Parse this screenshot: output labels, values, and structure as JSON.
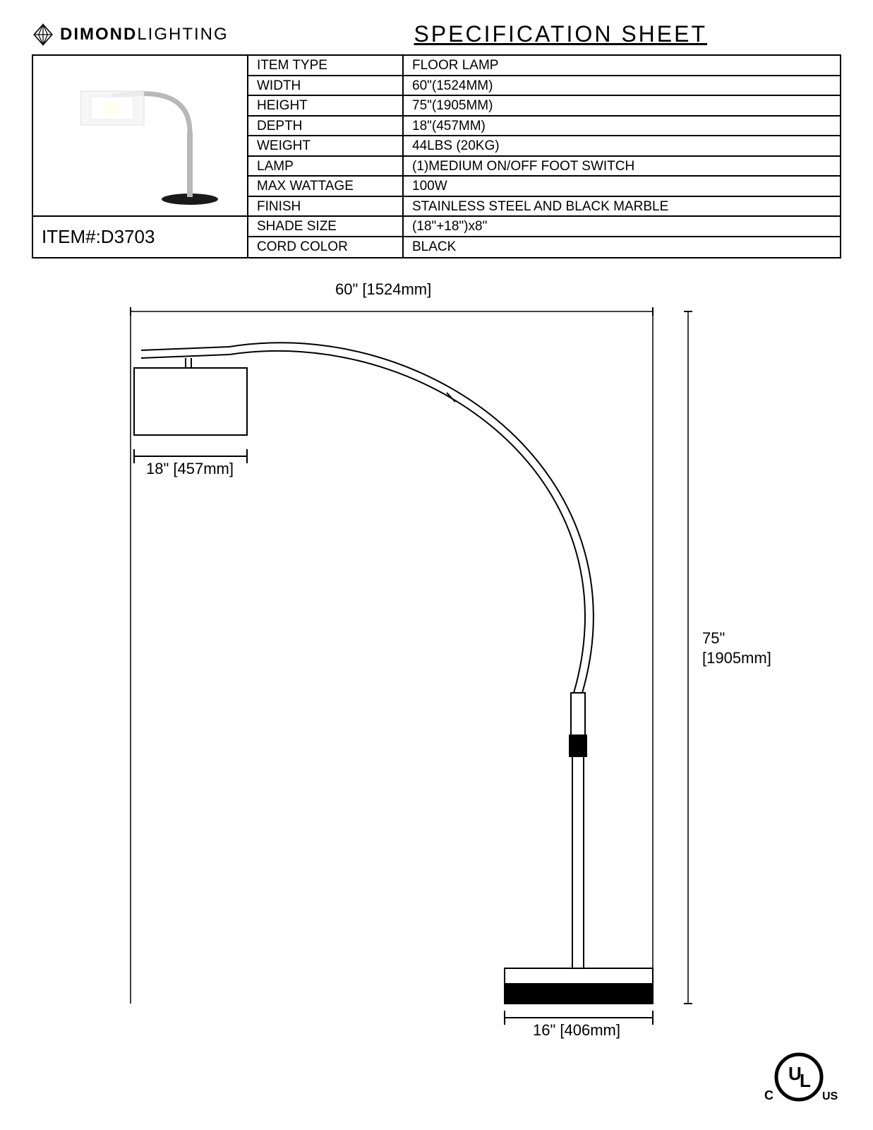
{
  "brand": {
    "name_bold": "DIMOND",
    "name_light": "LIGHTING"
  },
  "title": "SPECIFICATION  SHEET",
  "item_number_label": "ITEM#:",
  "item_number_value": "D3703",
  "specs": [
    {
      "label": "ITEM TYPE",
      "value": " FLOOR LAMP"
    },
    {
      "label": "WIDTH",
      "value": "60\"(1524MM)"
    },
    {
      "label": "HEIGHT",
      "value": "75\"(1905MM)"
    },
    {
      "label": "DEPTH",
      "value": "18\"(457MM)"
    },
    {
      "label": "WEIGHT",
      "value": "44LBS (20KG)"
    },
    {
      "label": "LAMP",
      "value": "(1)MEDIUM ON/OFF FOOT SWITCH"
    },
    {
      "label": "MAX WATTAGE",
      "value": "100W"
    },
    {
      "label": "FINISH",
      "value": "STAINLESS STEEL AND BLACK MARBLE"
    },
    {
      "label": "SHADE SIZE",
      "value": "(18\"+18\")x8\""
    },
    {
      "label": "CORD COLOR",
      "value": "BLACK"
    }
  ],
  "diagram": {
    "dimensions": {
      "width_label": "60\" [1524mm]",
      "shade_label": "18\" [457mm]",
      "height_label_top": "75\"",
      "height_label_bottom": "[1905mm]",
      "base_label": "16\" [406mm]"
    },
    "colors": {
      "line": "#000000",
      "fill_light": "#ffffff",
      "fill_dark": "#000000",
      "background": "#ffffff"
    },
    "line_width": 2
  },
  "ul": {
    "c": "C",
    "ul": "UL",
    "us": "US"
  }
}
